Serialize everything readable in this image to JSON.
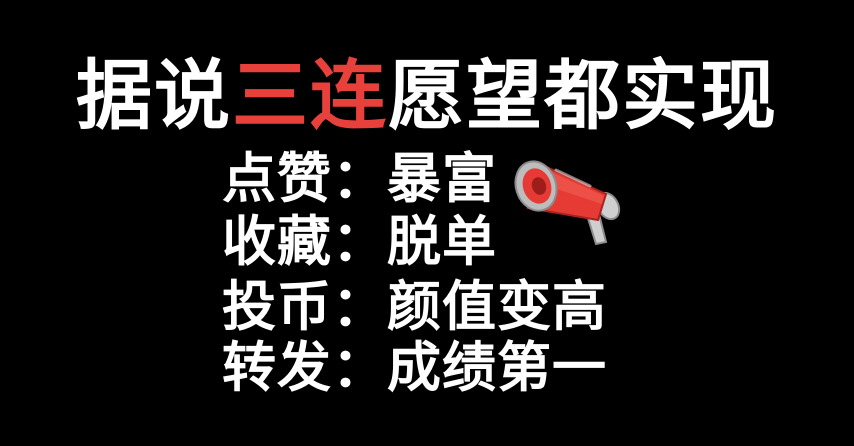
{
  "title": {
    "part1": "据说",
    "highlight": "三连",
    "part2": "愿望都实现",
    "highlight_color": "#e8403a"
  },
  "lines": [
    {
      "label": "点赞：",
      "wish": "暴富"
    },
    {
      "label": "收藏：",
      "wish": "脱单"
    },
    {
      "label": "投币：",
      "wish": "颜值变高"
    },
    {
      "label": "转发：",
      "wish": "成绩第一"
    }
  ],
  "decoration": {
    "icon": "megaphone-icon",
    "colors": {
      "body": "#e63b35",
      "trim": "#b9b9b9",
      "background": "#000000"
    }
  }
}
